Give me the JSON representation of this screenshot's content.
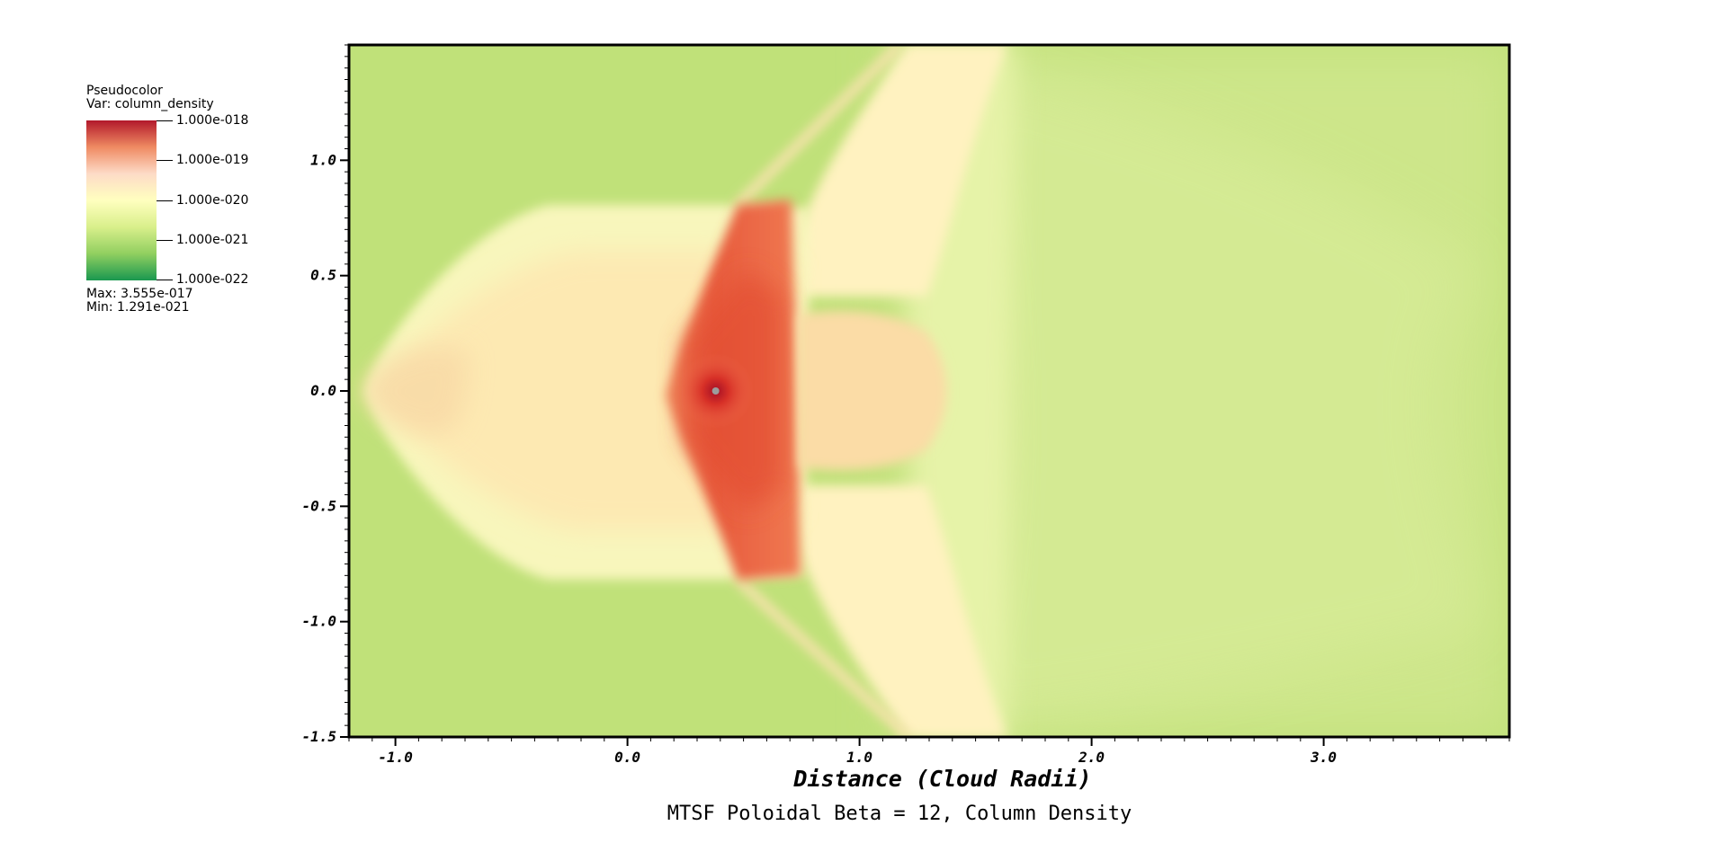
{
  "chart_data": {
    "type": "heatmap",
    "title": "MTSF Poloidal Beta = 12, Column Density",
    "xlabel": "Distance (Cloud Radii)",
    "ylabel": "",
    "xlim": [
      -1.2,
      3.8
    ],
    "ylim": [
      -1.5,
      1.5
    ],
    "x_ticks": [
      "-1.0",
      "0.0",
      "1.0",
      "2.0",
      "3.0"
    ],
    "x_tick_values": [
      -1.0,
      0.0,
      1.0,
      2.0,
      3.0
    ],
    "y_ticks": [
      "1.0",
      "0.5",
      "0.0",
      "-0.5",
      "-1.0",
      "-1.5"
    ],
    "y_tick_values": [
      1.0,
      0.5,
      0.0,
      -0.5,
      -1.0,
      -1.5
    ],
    "colormap": [
      "#b2182b",
      "#ef8a62",
      "#fddbc7",
      "#ffffbf",
      "#d9ef8b",
      "#91cf60",
      "#1a9850"
    ],
    "legend": {
      "plot_type": "Pseudocolor",
      "variable": "Var: column_density",
      "ticks": [
        "1.000e-018",
        "1.000e-019",
        "1.000e-020",
        "1.000e-021",
        "1.000e-022"
      ],
      "max": "Max:  3.555e-017",
      "min": "Min:  1.291e-021",
      "placement": "top-left"
    },
    "features": {
      "core_center": [
        0.38,
        0.0
      ],
      "bow_shock_apex_x": -1.13,
      "dense_band_x": [
        0.2,
        0.73
      ],
      "tail_extent_x": [
        0.73,
        1.45
      ]
    }
  },
  "colors": {
    "background": "#c0e179",
    "frame": "#000000"
  }
}
